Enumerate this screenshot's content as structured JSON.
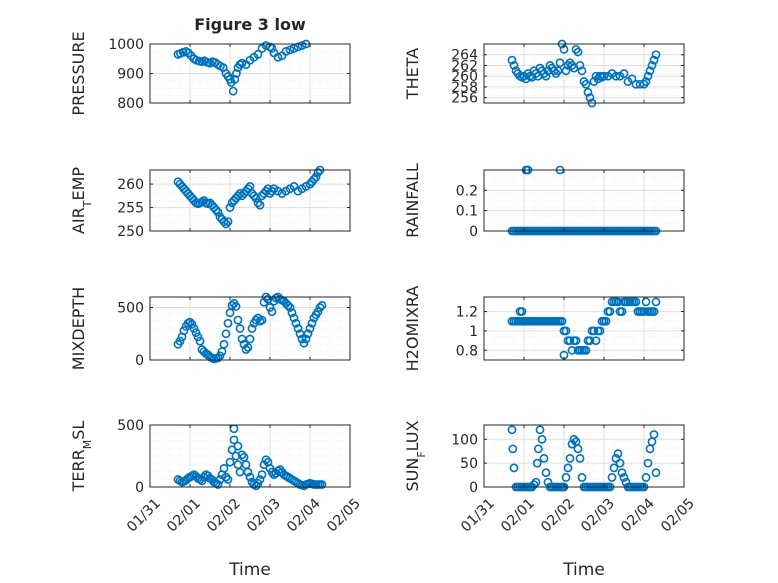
{
  "title": "Figure 3 low",
  "colors": {
    "series": "#0072bd",
    "axis": "#262626",
    "background": "#ffffff"
  },
  "chart_data": [
    {
      "type": "scatter",
      "ylabel": "PRESSURE",
      "ylim": [
        800,
        1000
      ],
      "yticks": [
        800,
        900,
        1000
      ],
      "xlim": [
        0,
        5
      ],
      "xticks": [
        0,
        1,
        2,
        3,
        4,
        5
      ],
      "xticklabels": [
        "01/31",
        "02/01",
        "02/02",
        "02/03",
        "02/04",
        "02/05"
      ],
      "xlabel": "",
      "grid": true,
      "x": [
        0.7,
        0.76,
        0.83,
        0.9,
        0.96,
        1.03,
        1.1,
        1.16,
        1.23,
        1.3,
        1.36,
        1.43,
        1.5,
        1.56,
        1.63,
        1.7,
        1.76,
        1.83,
        1.9,
        1.95,
        2.0,
        2.03,
        2.08,
        2.12,
        2.16,
        2.2,
        2.25,
        2.3,
        2.4,
        2.5,
        2.6,
        2.7,
        2.8,
        2.9,
        3.0,
        3.05,
        3.1,
        3.2,
        3.3,
        3.4,
        3.5,
        3.6,
        3.7,
        3.8,
        3.9,
        4.0,
        4.1,
        4.2,
        4.3,
        4.4
      ],
      "y": [
        965,
        968,
        972,
        975,
        970,
        960,
        950,
        945,
        942,
        940,
        943,
        938,
        935,
        940,
        937,
        930,
        925,
        920,
        900,
        890,
        880,
        870,
        840,
        880,
        900,
        920,
        930,
        935,
        930,
        945,
        955,
        965,
        985,
        995,
        990,
        985,
        970,
        955,
        960,
        975,
        980,
        985,
        990,
        995,
        1000,
        1005,
        1008,
        1010,
        1012,
        1015
      ]
    },
    {
      "type": "scatter",
      "ylabel": "THETA",
      "ylim": [
        255,
        266
      ],
      "yticks": [
        256,
        258,
        260,
        262,
        264
      ],
      "xlim": [
        0,
        5
      ],
      "xticks": [
        0,
        1,
        2,
        3,
        4,
        5
      ],
      "xticklabels": [
        "01/31",
        "02/01",
        "02/02",
        "02/03",
        "02/04",
        "02/05"
      ],
      "xlabel": "",
      "grid": true,
      "x": [
        0.7,
        0.75,
        0.8,
        0.85,
        0.9,
        0.95,
        1.0,
        1.05,
        1.1,
        1.15,
        1.2,
        1.25,
        1.3,
        1.35,
        1.4,
        1.45,
        1.5,
        1.55,
        1.6,
        1.65,
        1.7,
        1.75,
        1.8,
        1.85,
        1.9,
        1.95,
        2.0,
        2.05,
        2.1,
        2.15,
        2.2,
        2.25,
        2.3,
        2.35,
        2.4,
        2.45,
        2.5,
        2.55,
        2.6,
        2.65,
        2.7,
        2.75,
        2.8,
        2.85,
        2.9,
        2.95,
        3.0,
        3.1,
        3.2,
        3.3,
        3.4,
        3.5,
        3.6,
        3.7,
        3.8,
        3.9,
        4.0,
        4.05,
        4.1,
        4.15,
        4.2,
        4.25,
        4.3
      ],
      "y": [
        263,
        262,
        261,
        260.5,
        260,
        259.8,
        260,
        259.5,
        260.5,
        260,
        259.8,
        261,
        260.5,
        260,
        261.5,
        261,
        260.5,
        260,
        261,
        262,
        261.5,
        261,
        260.5,
        261,
        262.5,
        266,
        265,
        261,
        262,
        262.5,
        262,
        261.5,
        265,
        264.5,
        262,
        261,
        259,
        258.5,
        257,
        256,
        255,
        259,
        260,
        259.5,
        260,
        259.8,
        260,
        260,
        260.5,
        260,
        260,
        260.5,
        259,
        259.5,
        258.5,
        258.5,
        258.5,
        259,
        260,
        261,
        262,
        263,
        264
      ]
    },
    {
      "type": "scatter",
      "ylabel": "AIR_TEMP",
      "ylim": [
        250,
        263
      ],
      "yticks": [
        250,
        255,
        260
      ],
      "xlim": [
        0,
        5
      ],
      "xticks": [
        0,
        1,
        2,
        3,
        4,
        5
      ],
      "xticklabels": [
        "01/31",
        "02/01",
        "02/02",
        "02/03",
        "02/04",
        "02/05"
      ],
      "xlabel": "",
      "grid": true,
      "x": [
        0.7,
        0.75,
        0.8,
        0.85,
        0.9,
        0.95,
        1.0,
        1.05,
        1.1,
        1.15,
        1.2,
        1.25,
        1.3,
        1.35,
        1.4,
        1.45,
        1.5,
        1.55,
        1.6,
        1.65,
        1.7,
        1.75,
        1.8,
        1.85,
        1.9,
        1.95,
        2.0,
        2.05,
        2.1,
        2.15,
        2.2,
        2.25,
        2.3,
        2.35,
        2.4,
        2.45,
        2.5,
        2.55,
        2.6,
        2.65,
        2.7,
        2.75,
        2.8,
        2.85,
        2.9,
        2.95,
        3.0,
        3.05,
        3.1,
        3.2,
        3.3,
        3.4,
        3.5,
        3.6,
        3.7,
        3.8,
        3.9,
        4.0,
        4.05,
        4.1,
        4.15,
        4.2,
        4.25,
        4.3
      ],
      "y": [
        260.5,
        260,
        259.5,
        259,
        258.5,
        258,
        257.5,
        257,
        256.5,
        256,
        255.8,
        256,
        256.2,
        256.5,
        256,
        255.8,
        256,
        255.5,
        255,
        254.5,
        254,
        253,
        252.5,
        252,
        251.5,
        252,
        255,
        256,
        256.5,
        257,
        257.5,
        258,
        257.5,
        258,
        258.5,
        259,
        259.5,
        258,
        257.5,
        257,
        256,
        255.5,
        257.5,
        258,
        258.5,
        259,
        258,
        258.5,
        259,
        258.5,
        258,
        258.5,
        259,
        259.5,
        258.5,
        259,
        259.5,
        260,
        260.5,
        261,
        261.5,
        262.5,
        263,
        263.5
      ]
    },
    {
      "type": "scatter",
      "ylabel": "RAINFALL",
      "ylim": [
        0,
        0.3
      ],
      "yticks": [
        0,
        0.1,
        0.2
      ],
      "xlim": [
        0,
        5
      ],
      "xticks": [
        0,
        1,
        2,
        3,
        4,
        5
      ],
      "xticklabels": [
        "01/31",
        "02/01",
        "02/02",
        "02/03",
        "02/04",
        "02/05"
      ],
      "xlabel": "",
      "grid": true,
      "x": [
        0.7,
        0.75,
        0.8,
        0.85,
        0.9,
        0.95,
        1.0,
        1.05,
        1.1,
        1.15,
        1.2,
        1.25,
        1.3,
        1.35,
        1.4,
        1.45,
        1.5,
        1.55,
        1.6,
        1.65,
        1.7,
        1.75,
        1.8,
        1.85,
        1.9,
        1.95,
        2.0,
        2.05,
        2.1,
        2.15,
        2.2,
        2.25,
        2.3,
        2.35,
        2.4,
        2.45,
        2.5,
        2.55,
        2.6,
        2.65,
        2.7,
        2.75,
        2.8,
        2.85,
        2.9,
        2.95,
        3.0,
        3.05,
        3.1,
        3.15,
        3.2,
        3.25,
        3.3,
        3.35,
        3.4,
        3.45,
        3.5,
        3.55,
        3.6,
        3.65,
        3.7,
        3.75,
        3.8,
        3.85,
        3.9,
        3.95,
        4.0,
        4.05,
        4.1,
        4.15,
        4.2,
        4.25,
        4.3,
        1.05,
        1.1,
        1.9
      ],
      "y": [
        0,
        0,
        0,
        0,
        0,
        0,
        0,
        0,
        0,
        0,
        0,
        0,
        0,
        0,
        0,
        0,
        0,
        0,
        0,
        0,
        0,
        0,
        0,
        0,
        0,
        0,
        0,
        0,
        0,
        0,
        0,
        0,
        0,
        0,
        0,
        0,
        0,
        0,
        0,
        0,
        0,
        0,
        0,
        0,
        0,
        0,
        0,
        0,
        0,
        0,
        0,
        0,
        0,
        0,
        0,
        0,
        0,
        0,
        0,
        0,
        0,
        0,
        0,
        0,
        0,
        0,
        0,
        0,
        0,
        0,
        0,
        0,
        0,
        0.3,
        0.3,
        0.3
      ]
    },
    {
      "type": "scatter",
      "ylabel": "MIXDEPTH",
      "ylim": [
        0,
        600
      ],
      "yticks": [
        0,
        500
      ],
      "xlim": [
        0,
        5
      ],
      "xticks": [
        0,
        1,
        2,
        3,
        4,
        5
      ],
      "xticklabels": [
        "01/31",
        "02/01",
        "02/02",
        "02/03",
        "02/04",
        "02/05"
      ],
      "xlabel": "",
      "grid": true,
      "x": [
        0.7,
        0.75,
        0.8,
        0.85,
        0.9,
        0.95,
        1.0,
        1.05,
        1.1,
        1.15,
        1.2,
        1.25,
        1.3,
        1.35,
        1.4,
        1.45,
        1.5,
        1.55,
        1.6,
        1.65,
        1.7,
        1.75,
        1.8,
        1.85,
        1.9,
        1.95,
        2.0,
        2.05,
        2.1,
        2.15,
        2.2,
        2.25,
        2.3,
        2.35,
        2.4,
        2.45,
        2.5,
        2.55,
        2.6,
        2.65,
        2.7,
        2.75,
        2.8,
        2.85,
        2.9,
        2.95,
        3.0,
        3.05,
        3.1,
        3.15,
        3.2,
        3.25,
        3.3,
        3.35,
        3.4,
        3.45,
        3.5,
        3.55,
        3.6,
        3.65,
        3.7,
        3.75,
        3.8,
        3.85,
        3.9,
        3.95,
        4.0,
        4.05,
        4.1,
        4.15,
        4.2,
        4.25,
        4.3
      ],
      "y": [
        150,
        180,
        220,
        280,
        320,
        350,
        360,
        340,
        300,
        260,
        220,
        180,
        100,
        80,
        60,
        50,
        30,
        20,
        10,
        15,
        20,
        40,
        80,
        150,
        250,
        350,
        450,
        520,
        540,
        510,
        380,
        300,
        200,
        150,
        100,
        120,
        200,
        300,
        350,
        380,
        400,
        370,
        380,
        550,
        600,
        580,
        500,
        460,
        560,
        590,
        600,
        580,
        570,
        560,
        540,
        520,
        500,
        450,
        400,
        350,
        300,
        250,
        200,
        160,
        200,
        250,
        300,
        350,
        400,
        430,
        460,
        500,
        520
      ]
    },
    {
      "type": "scatter",
      "ylabel": "H2OMIXRA",
      "ylim": [
        0.7,
        1.35
      ],
      "yticks": [
        0.8,
        1,
        1.2
      ],
      "xlim": [
        0,
        5
      ],
      "xticks": [
        0,
        1,
        2,
        3,
        4,
        5
      ],
      "xticklabels": [
        "01/31",
        "02/01",
        "02/02",
        "02/03",
        "02/04",
        "02/05"
      ],
      "xlabel": "",
      "grid": true,
      "x": [
        0.7,
        0.75,
        0.8,
        0.85,
        0.9,
        0.95,
        1.0,
        1.05,
        1.1,
        1.15,
        1.2,
        1.25,
        1.3,
        1.35,
        1.4,
        1.45,
        1.5,
        1.55,
        1.6,
        1.65,
        1.7,
        1.75,
        1.8,
        1.85,
        1.9,
        1.95,
        2.0,
        2.05,
        2.1,
        2.15,
        2.2,
        2.25,
        2.3,
        2.35,
        2.4,
        2.45,
        2.5,
        2.55,
        2.6,
        2.65,
        2.7,
        2.75,
        2.8,
        2.85,
        2.9,
        2.95,
        3.0,
        3.05,
        3.1,
        3.15,
        3.2,
        3.25,
        3.3,
        3.35,
        3.4,
        3.45,
        3.5,
        3.55,
        3.6,
        3.65,
        3.7,
        3.75,
        3.8,
        3.85,
        3.9,
        3.95,
        4.0,
        4.05,
        4.1,
        4.15,
        4.2,
        4.25,
        4.3,
        0.9,
        0.95,
        2.0
      ],
      "y": [
        1.1,
        1.1,
        1.1,
        1.1,
        1.1,
        1.1,
        1.1,
        1.1,
        1.1,
        1.1,
        1.1,
        1.1,
        1.1,
        1.1,
        1.1,
        1.1,
        1.1,
        1.1,
        1.1,
        1.1,
        1.1,
        1.1,
        1.1,
        1.1,
        1.1,
        1.1,
        1.0,
        1.0,
        0.9,
        0.9,
        0.8,
        0.9,
        0.9,
        0.8,
        0.8,
        0.8,
        0.8,
        0.8,
        0.9,
        0.9,
        1.0,
        1.0,
        0.9,
        1.0,
        1.0,
        1.1,
        1.1,
        1.1,
        1.2,
        1.2,
        1.3,
        1.3,
        1.3,
        1.3,
        1.2,
        1.2,
        1.3,
        1.3,
        1.3,
        1.3,
        1.3,
        1.3,
        1.3,
        1.2,
        1.2,
        1.2,
        1.2,
        1.3,
        1.2,
        1.2,
        1.2,
        1.2,
        1.3,
        1.2,
        1.2,
        0.75
      ]
    },
    {
      "type": "scatter",
      "ylabel": "TERR_MSL",
      "ylim": [
        0,
        500
      ],
      "yticks": [
        0,
        500
      ],
      "xlim": [
        0,
        5
      ],
      "xticks": [
        0,
        1,
        2,
        3,
        4,
        5
      ],
      "xticklabels": [
        "01/31",
        "02/01",
        "02/02",
        "02/03",
        "02/04",
        "02/05"
      ],
      "xlabel": "Time",
      "grid": true,
      "x": [
        0.7,
        0.75,
        0.8,
        0.85,
        0.9,
        0.95,
        1.0,
        1.05,
        1.1,
        1.15,
        1.2,
        1.25,
        1.3,
        1.35,
        1.4,
        1.45,
        1.5,
        1.55,
        1.6,
        1.65,
        1.7,
        1.75,
        1.8,
        1.85,
        1.9,
        1.95,
        2.0,
        2.05,
        2.1,
        2.15,
        2.2,
        2.25,
        2.3,
        2.35,
        2.4,
        2.45,
        2.5,
        2.55,
        2.6,
        2.65,
        2.7,
        2.75,
        2.8,
        2.85,
        2.9,
        2.95,
        3.0,
        3.05,
        3.1,
        3.15,
        3.2,
        3.25,
        3.3,
        3.35,
        3.4,
        3.45,
        3.5,
        3.55,
        3.6,
        3.65,
        3.7,
        3.75,
        3.8,
        3.85,
        3.9,
        3.95,
        4.0,
        4.05,
        4.1,
        4.15,
        4.2,
        4.25,
        4.3,
        2.1,
        2.2
      ],
      "y": [
        60,
        50,
        40,
        45,
        55,
        70,
        80,
        90,
        100,
        85,
        70,
        60,
        50,
        80,
        100,
        90,
        70,
        60,
        40,
        30,
        20,
        60,
        100,
        150,
        80,
        60,
        200,
        300,
        380,
        250,
        180,
        120,
        260,
        240,
        180,
        120,
        80,
        40,
        20,
        10,
        30,
        60,
        100,
        180,
        220,
        200,
        150,
        120,
        100,
        110,
        130,
        140,
        120,
        100,
        90,
        80,
        70,
        60,
        50,
        40,
        30,
        20,
        15,
        10,
        20,
        25,
        30,
        25,
        20,
        20,
        20,
        20,
        20,
        470,
        330
      ]
    },
    {
      "type": "scatter",
      "ylabel": "SUN_FLUX",
      "ylim": [
        0,
        130
      ],
      "yticks": [
        0,
        50,
        100
      ],
      "xlim": [
        0,
        5
      ],
      "xticks": [
        0,
        1,
        2,
        3,
        4,
        5
      ],
      "xticklabels": [
        "01/31",
        "02/01",
        "02/02",
        "02/03",
        "02/04",
        "02/05"
      ],
      "xlabel": "Time",
      "grid": true,
      "x": [
        0.7,
        0.72,
        0.75,
        0.8,
        0.85,
        0.9,
        0.95,
        1.0,
        1.05,
        1.1,
        1.15,
        1.18,
        1.2,
        1.25,
        1.3,
        1.33,
        1.36,
        1.4,
        1.45,
        1.5,
        1.55,
        1.6,
        1.65,
        1.7,
        1.75,
        1.8,
        1.85,
        1.9,
        1.95,
        1.98,
        2.0,
        2.05,
        2.1,
        2.15,
        2.2,
        2.25,
        2.3,
        2.35,
        2.4,
        2.45,
        2.5,
        2.55,
        2.6,
        2.65,
        2.7,
        2.75,
        2.8,
        2.85,
        2.9,
        2.95,
        3.0,
        3.05,
        3.1,
        3.15,
        3.2,
        3.25,
        3.3,
        3.35,
        3.4,
        3.45,
        3.5,
        3.55,
        3.6,
        3.65,
        3.7,
        3.75,
        3.8,
        3.85,
        3.9,
        3.95,
        4.0,
        4.05,
        4.1,
        4.15,
        4.2,
        4.25,
        4.3
      ],
      "y": [
        120,
        80,
        40,
        0,
        0,
        0,
        0,
        0,
        0,
        0,
        0,
        0,
        0,
        5,
        10,
        50,
        80,
        120,
        100,
        60,
        30,
        10,
        0,
        0,
        0,
        0,
        0,
        0,
        0,
        0,
        0,
        20,
        40,
        60,
        90,
        100,
        95,
        80,
        60,
        20,
        0,
        0,
        0,
        0,
        0,
        0,
        0,
        0,
        0,
        0,
        0,
        0,
        0,
        0,
        20,
        40,
        60,
        70,
        50,
        30,
        20,
        10,
        0,
        0,
        0,
        0,
        0,
        0,
        0,
        0,
        0,
        20,
        50,
        80,
        95,
        110,
        30
      ]
    }
  ]
}
